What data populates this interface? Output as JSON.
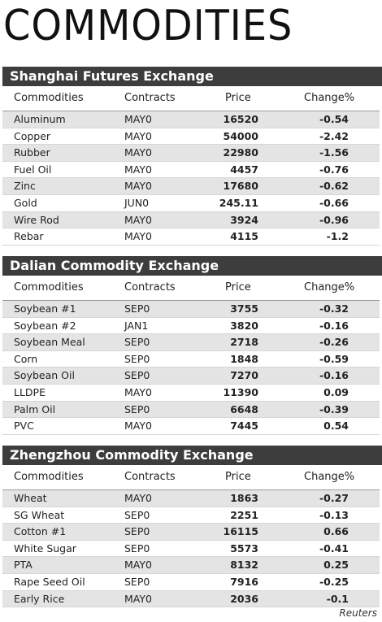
{
  "title": "COMMODITIES",
  "columns": [
    "Commodities",
    "Contracts",
    "Price",
    "Change%"
  ],
  "sections": [
    {
      "name": "Shanghai Futures Exchange",
      "rows": [
        [
          "Aluminum",
          "MAY0",
          "16520",
          "-0.54"
        ],
        [
          "Copper",
          "MAY0",
          "54000",
          "-2.42"
        ],
        [
          "Rubber",
          "MAY0",
          "22980",
          "-1.56"
        ],
        [
          "Fuel Oil",
          "MAY0",
          "4457",
          "-0.76"
        ],
        [
          "Zinc",
          "MAY0",
          "17680",
          "-0.62"
        ],
        [
          "Gold",
          "JUN0",
          "245.11",
          "-0.66"
        ],
        [
          "Wire Rod",
          "MAY0",
          "3924",
          "-0.96"
        ],
        [
          "Rebar",
          "MAY0",
          "4115",
          "-1.2"
        ]
      ]
    },
    {
      "name": "Dalian Commodity Exchange",
      "rows": [
        [
          "Soybean #1",
          "SEP0",
          "3755",
          "-0.32"
        ],
        [
          "Soybean #2",
          "JAN1",
          "3820",
          "-0.16"
        ],
        [
          "Soybean Meal",
          "SEP0",
          "2718",
          "-0.26"
        ],
        [
          "Corn",
          "SEP0",
          "1848",
          "-0.59"
        ],
        [
          "Soybean Oil",
          "SEP0",
          "7270",
          "-0.16"
        ],
        [
          "LLDPE",
          "MAY0",
          "11390",
          "0.09"
        ],
        [
          "Palm Oil",
          "SEP0",
          "6648",
          "-0.39"
        ],
        [
          "PVC",
          "MAY0",
          "7445",
          "0.54"
        ]
      ]
    },
    {
      "name": "Zhengzhou Commodity Exchange",
      "rows": [
        [
          "Wheat",
          "MAY0",
          "1863",
          "-0.27"
        ],
        [
          "SG Wheat",
          "SEP0",
          "2251",
          "-0.13"
        ],
        [
          "Cotton #1",
          "SEP0",
          "16115",
          "0.66"
        ],
        [
          "White Sugar",
          "SEP0",
          "5573",
          "-0.41"
        ],
        [
          "PTA",
          "MAY0",
          "8132",
          "0.25"
        ],
        [
          "Rape Seed Oil",
          "SEP0",
          "7916",
          "-0.25"
        ],
        [
          "Early Rice",
          "MAY0",
          "2036",
          "-0.1"
        ]
      ]
    }
  ],
  "source": "Reuters"
}
